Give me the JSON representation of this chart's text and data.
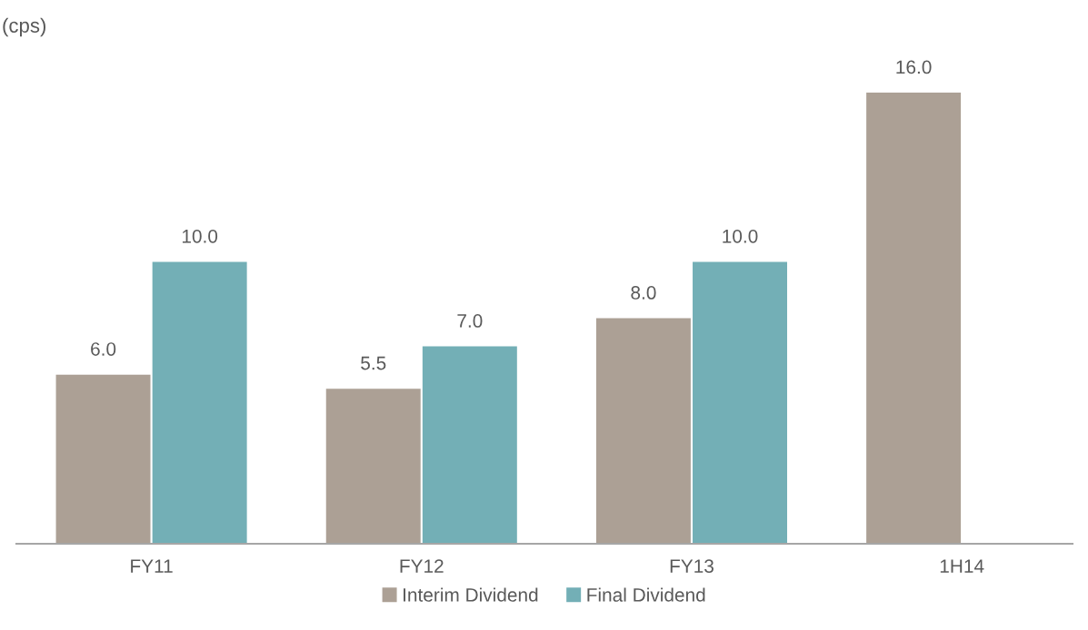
{
  "chart_data": {
    "type": "bar",
    "ylabel": "(cps)",
    "categories": [
      "FY11",
      "FY12",
      "FY13",
      "1H14"
    ],
    "series": [
      {
        "name": "Interim Dividend",
        "color": "#aca095",
        "values": [
          6.0,
          5.5,
          8.0,
          16.0
        ],
        "value_labels": [
          "6.0",
          "5.5",
          "8.0",
          "16.0"
        ]
      },
      {
        "name": "Final Dividend",
        "color": "#73afb6",
        "values": [
          10.0,
          7.0,
          10.0,
          null
        ],
        "value_labels": [
          "10.0",
          "7.0",
          "10.0",
          null
        ]
      }
    ],
    "tick_labels": "x",
    "legend": "bottom",
    "grid": false
  }
}
